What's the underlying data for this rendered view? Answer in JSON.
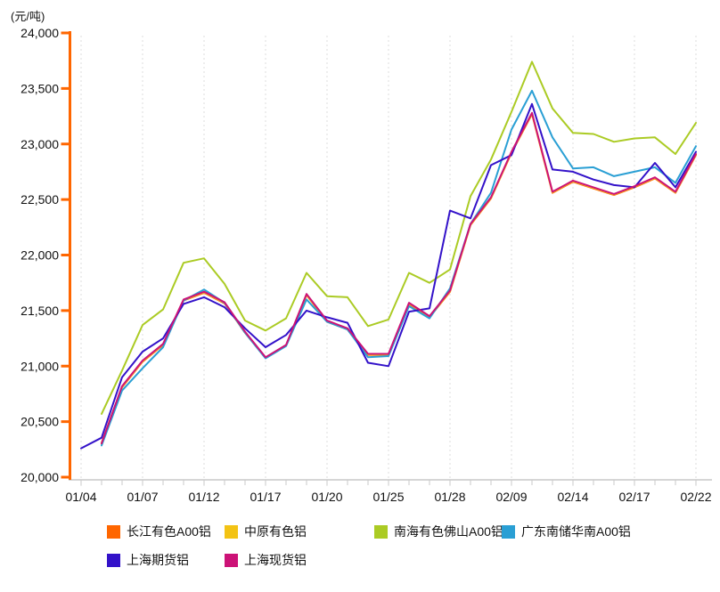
{
  "title": "(元/吨)",
  "y_axis": {
    "unit_label": "(元/吨)",
    "tick_labels": [
      "24,000",
      "23,500",
      "23,000",
      "22,500",
      "22,000",
      "21,500",
      "21,000",
      "20,500",
      "20,000"
    ],
    "tick_values": [
      24000,
      23500,
      23000,
      22500,
      22000,
      21500,
      21000,
      20500,
      20000
    ],
    "axis_color": "#FF6600"
  },
  "x_axis": {
    "tick_labels": [
      "01/04",
      "01/07",
      "01/12",
      "01/17",
      "01/20",
      "01/25",
      "01/28",
      "02/09",
      "02/14",
      "02/17",
      "02/22"
    ],
    "axis_color": "#C9C9C9",
    "gridline_color": "#DCDCDC"
  },
  "chart_data": {
    "type": "line",
    "x": [
      "01/04",
      "01/05",
      "01/06",
      "01/07",
      "01/10",
      "01/11",
      "01/12",
      "01/13",
      "01/14",
      "01/17",
      "01/18",
      "01/19",
      "01/20",
      "01/21",
      "01/24",
      "01/25",
      "01/26",
      "01/27",
      "01/28",
      "01/31",
      "02/01",
      "02/09",
      "02/10",
      "02/11",
      "02/14",
      "02/15",
      "02/16",
      "02/17",
      "02/18",
      "02/21",
      "02/22"
    ],
    "x_label_indices": [
      0,
      3,
      6,
      9,
      12,
      15,
      18,
      21,
      24,
      27,
      30
    ],
    "ylim": [
      20000,
      24000
    ],
    "ytick_step": 500,
    "grid": "vertical-dotted",
    "legend_position": "bottom",
    "series": [
      {
        "name": "长江有色A00铝",
        "color": "#FF6600",
        "values": [
          null,
          20300,
          20810,
          21040,
          21190,
          21590,
          21660,
          21565,
          21300,
          21075,
          21185,
          21640,
          21400,
          21330,
          21100,
          21100,
          21560,
          21440,
          21670,
          22270,
          22510,
          22920,
          23270,
          22560,
          22660,
          22600,
          22540,
          22610,
          22690,
          22560,
          22900
        ]
      },
      {
        "name": "中原有色铝",
        "color": "#F3C314",
        "values": [
          null,
          20310,
          20815,
          21045,
          21195,
          21595,
          21665,
          21570,
          21300,
          21075,
          21185,
          21645,
          21405,
          21335,
          21105,
          21105,
          21565,
          21445,
          21675,
          22275,
          22515,
          22925,
          23275,
          22565,
          22665,
          22605,
          22545,
          22615,
          22695,
          22565,
          22905
        ]
      },
      {
        "name": "南海有色佛山A00铝",
        "color": "#ABCB24",
        "values": [
          null,
          20570,
          20960,
          21370,
          21510,
          21930,
          21970,
          21740,
          21410,
          21320,
          21430,
          21840,
          21630,
          21620,
          21360,
          21420,
          21840,
          21750,
          21870,
          22530,
          22860,
          23290,
          23740,
          23320,
          23100,
          23090,
          23020,
          23050,
          23060,
          22910,
          23190
        ]
      },
      {
        "name": "广东南储华南A00铝",
        "color": "#2A9FD4",
        "values": [
          null,
          20285,
          20780,
          20980,
          21170,
          21590,
          21690,
          21570,
          21300,
          21070,
          21180,
          21600,
          21400,
          21330,
          21080,
          21090,
          21540,
          21430,
          21700,
          22280,
          22560,
          23130,
          23480,
          23060,
          22780,
          22790,
          22710,
          22750,
          22790,
          22650,
          22980
        ]
      },
      {
        "name": "上海期货铝",
        "color": "#3312C9",
        "values": [
          20260,
          20355,
          20900,
          21130,
          21250,
          21560,
          21620,
          21530,
          21340,
          21170,
          21280,
          21500,
          21440,
          21390,
          21030,
          21000,
          21490,
          21520,
          22400,
          22330,
          22810,
          22900,
          23360,
          22770,
          22750,
          22680,
          22630,
          22610,
          22830,
          22610,
          22930
        ]
      },
      {
        "name": "上海现货铝",
        "color": "#CC1277",
        "values": [
          null,
          20305,
          20820,
          21050,
          21200,
          21600,
          21670,
          21575,
          21310,
          21080,
          21190,
          21650,
          21410,
          21340,
          21110,
          21110,
          21570,
          21450,
          21680,
          22280,
          22520,
          22930,
          23280,
          22570,
          22670,
          22610,
          22550,
          22620,
          22700,
          22570,
          22910
        ]
      }
    ]
  },
  "legend": {
    "rows": [
      [
        0,
        1,
        2,
        3
      ],
      [
        4,
        5
      ]
    ]
  }
}
